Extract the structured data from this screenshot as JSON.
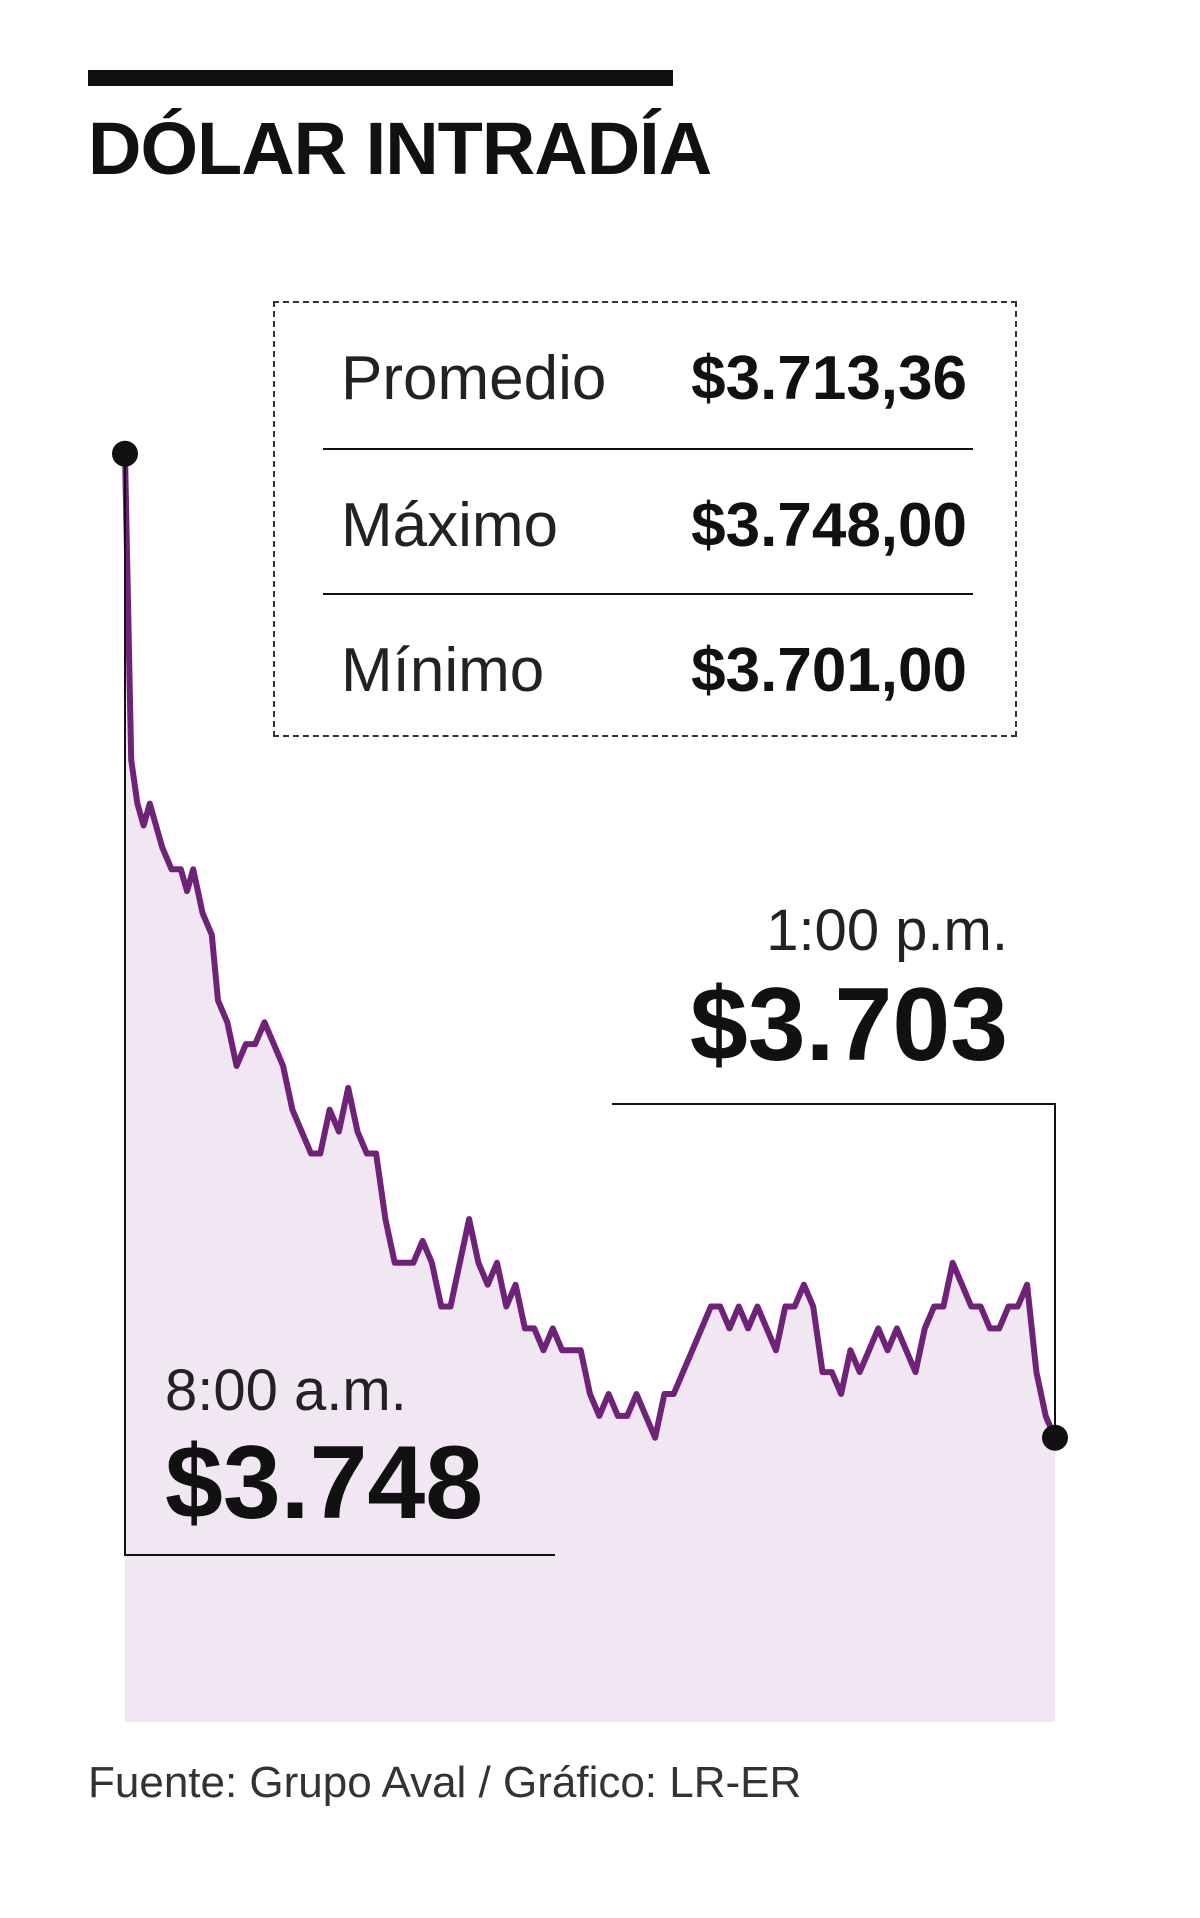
{
  "header": {
    "title": "DÓLAR INTRADÍA"
  },
  "stats": [
    {
      "label": "Promedio",
      "value": "$3.713,36"
    },
    {
      "label": "Máximo",
      "value": "$3.748,00"
    },
    {
      "label": "Mínimo",
      "value": "$3.701,00"
    }
  ],
  "annotations": {
    "start": {
      "time": "8:00 a.m.",
      "value": "$3.748"
    },
    "end": {
      "time": "1:00 p.m.",
      "value": "$3.703"
    }
  },
  "footer": {
    "source": "Fuente: Grupo Aval / Gráfico: LR-ER"
  },
  "colors": {
    "line": "#6f2378",
    "area": "#f1e7f3",
    "text": "#111111"
  },
  "chart_data": {
    "type": "area",
    "title": "DÓLAR INTRADÍA",
    "xlabel": "",
    "ylabel": "",
    "x_start": "8:00 a.m.",
    "x_end": "1:00 p.m.",
    "ylim": [
      3690,
      3750
    ],
    "grid": false,
    "legend": "none",
    "summary": {
      "average": 3713.36,
      "max": 3748.0,
      "min": 3701.0
    },
    "x": [
      0,
      2,
      4,
      6,
      8,
      10,
      12,
      15,
      18,
      20,
      22,
      25,
      28,
      30,
      33,
      36,
      39,
      42,
      45,
      48,
      51,
      54,
      57,
      60,
      63,
      66,
      69,
      72,
      75,
      78,
      81,
      84,
      87,
      90,
      93,
      96,
      99,
      102,
      105,
      108,
      111,
      114,
      117,
      120,
      123,
      126,
      129,
      132,
      135,
      138,
      141,
      144,
      147,
      150,
      153,
      156,
      159,
      162,
      165,
      168,
      171,
      174,
      177,
      180,
      183,
      186,
      189,
      192,
      195,
      198,
      201,
      204,
      207,
      210,
      213,
      216,
      219,
      222,
      225,
      228,
      231,
      234,
      237,
      240,
      243,
      246,
      249,
      252,
      255,
      258,
      261,
      264,
      267,
      270,
      273,
      276,
      279,
      282,
      285,
      288,
      291,
      294,
      297,
      300
    ],
    "values": [
      3748,
      3734,
      3732,
      3731,
      3732,
      3731,
      3730,
      3729,
      3729,
      3728,
      3729,
      3727,
      3726,
      3723,
      3722,
      3720,
      3721,
      3721,
      3722,
      3721,
      3720,
      3718,
      3717,
      3716,
      3716,
      3718,
      3717,
      3719,
      3717,
      3716,
      3716,
      3713,
      3711,
      3711,
      3711,
      3712,
      3711,
      3709,
      3709,
      3711,
      3713,
      3711,
      3710,
      3711,
      3709,
      3710,
      3708,
      3708,
      3707,
      3708,
      3707,
      3707,
      3707,
      3705,
      3704,
      3705,
      3704,
      3704,
      3705,
      3704,
      3703,
      3705,
      3705,
      3706,
      3707,
      3708,
      3709,
      3709,
      3708,
      3709,
      3708,
      3709,
      3708,
      3707,
      3709,
      3709,
      3710,
      3709,
      3706,
      3706,
      3705,
      3707,
      3706,
      3707,
      3708,
      3707,
      3708,
      3707,
      3706,
      3708,
      3709,
      3709,
      3711,
      3710,
      3709,
      3709,
      3708,
      3708,
      3709,
      3709,
      3710,
      3706,
      3704,
      3703
    ]
  }
}
